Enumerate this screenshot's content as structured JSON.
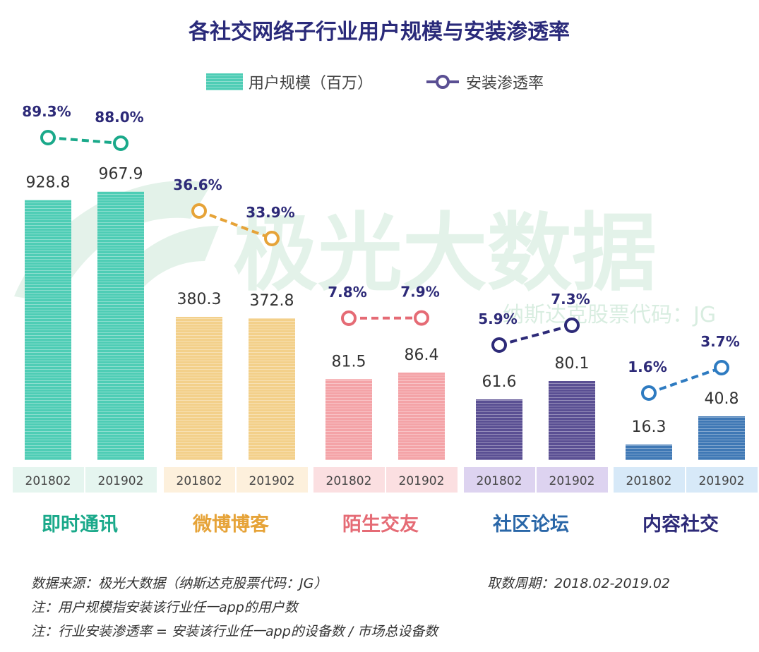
{
  "chart_data": {
    "type": "bar",
    "title": "各社交网络子行业用户规模与安装渗透率",
    "legend": {
      "bar_label": "用户规模（百万）",
      "line_label": "安装渗透率",
      "position": "top-center"
    },
    "periods": [
      "201802",
      "201902"
    ],
    "categories": [
      "即时通讯",
      "微博博客",
      "陌生交友",
      "社区论坛",
      "内容社交"
    ],
    "ylim": [
      0,
      1000
    ],
    "series": [
      {
        "name": "用户规模（百万）",
        "type": "bar",
        "values": [
          [
            928.8,
            967.9
          ],
          [
            380.3,
            372.8
          ],
          [
            81.5,
            86.4
          ],
          [
            61.6,
            80.1
          ],
          [
            16.3,
            40.8
          ]
        ],
        "labels": [
          [
            "928.8",
            "967.9"
          ],
          [
            "380.3",
            "372.8"
          ],
          [
            "81.5",
            "86.4"
          ],
          [
            "61.6",
            "80.1"
          ],
          [
            "16.3",
            "40.8"
          ]
        ]
      },
      {
        "name": "安装渗透率",
        "type": "line",
        "values": [
          [
            89.3,
            88.0
          ],
          [
            36.6,
            33.9
          ],
          [
            7.8,
            7.9
          ],
          [
            5.9,
            7.3
          ],
          [
            1.6,
            3.7
          ]
        ],
        "labels": [
          [
            "89.3%",
            "88.0%"
          ],
          [
            "36.6%",
            "33.9%"
          ],
          [
            "7.8%",
            "7.9%"
          ],
          [
            "5.9%",
            "7.3%"
          ],
          [
            "1.6%",
            "3.7%"
          ]
        ]
      }
    ],
    "colors": {
      "bars": [
        "#4ecdb5",
        "#f3d08a",
        "#f4a3a7",
        "#5a4f93",
        "#3f78b5"
      ],
      "lines": [
        "#1aa98a",
        "#e6a338",
        "#e56b75",
        "#2d2a78",
        "#2e7bc1"
      ],
      "period_boxes": [
        "#e5f5ef",
        "#fdf0dc",
        "#fbdfe1",
        "#ddd3f0",
        "#d7e9f8"
      ],
      "category_text": [
        "#1aa98a",
        "#e6a338",
        "#e56b75",
        "#2a67a8",
        "#2d2a78"
      ]
    }
  },
  "watermark": {
    "text": "极光大数据",
    "sub": "纳斯达克股票代码：JG"
  },
  "footer": {
    "source": "数据来源：极光大数据（纳斯达克股票代码：JG）",
    "period": "取数周期：2018.02-2019.02",
    "note1": "注：用户规模指安装该行业任一app的用户数",
    "note2": "注：行业安装渗透率 = 安装该行业任一app的设备数 / 市场总设备数"
  }
}
